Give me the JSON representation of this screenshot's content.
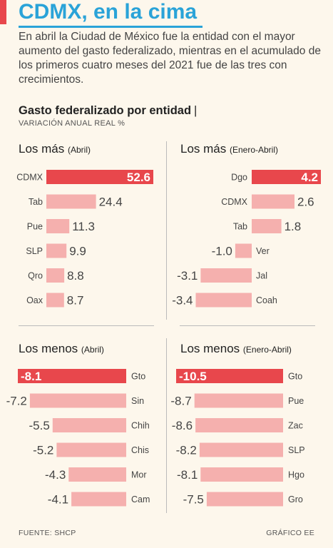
{
  "header": {
    "title": "CDMX, en la cima",
    "subtitle": "En abril la Ciudad de México fue la entidad con el mayor aumento del gasto federalizado, mientras en el acumulado de los primeros cuatro meses del 2021 fue de las tres con crecimientos."
  },
  "chart_header": {
    "title": "Gasto federalizado por entidad",
    "separator": "|",
    "unit_label": "VARIACIÓN ANUAL REAL %"
  },
  "colors": {
    "highlight": "#e8474c",
    "bar": "#f5b0ae",
    "title": "#2aa3d8"
  },
  "chart_data": [
    {
      "type": "bar",
      "title": "Los más",
      "period": "(Abril)",
      "categories": [
        "CDMX",
        "Tab",
        "Pue",
        "SLP",
        "Qro",
        "Oax"
      ],
      "values": [
        52.6,
        24.4,
        11.3,
        9.9,
        8.8,
        8.7
      ],
      "labels": [
        "52.6",
        "24.4",
        "11.3",
        "9.9",
        "8.8",
        "8.7"
      ],
      "highlight_index": 0
    },
    {
      "type": "bar",
      "title": "Los más",
      "period": "(Enero-Abril)",
      "categories": [
        "Dgo",
        "CDMX",
        "Tab",
        "Ver",
        "Jal",
        "Coah"
      ],
      "values": [
        4.2,
        2.6,
        1.8,
        -1.0,
        -3.1,
        -3.4
      ],
      "labels": [
        "4.2",
        "2.6",
        "1.8",
        "-1.0",
        "-3.1",
        "-3.4"
      ],
      "highlight_index": 0
    },
    {
      "type": "bar",
      "title": "Los menos",
      "period": "(Abril)",
      "categories": [
        "Gto",
        "Sin",
        "Chih",
        "Chis",
        "Mor",
        "Cam"
      ],
      "values": [
        -8.1,
        -7.2,
        -5.5,
        -5.2,
        -4.3,
        -4.1
      ],
      "labels": [
        "-8.1",
        "-7.2",
        "-5.5",
        "-5.2",
        "-4.3",
        "-4.1"
      ],
      "highlight_index": 0
    },
    {
      "type": "bar",
      "title": "Los menos",
      "period": "(Enero-Abril)",
      "categories": [
        "Gto",
        "Pue",
        "Zac",
        "SLP",
        "Hgo",
        "Gro"
      ],
      "values": [
        -10.5,
        -8.7,
        -8.6,
        -8.2,
        -8.1,
        -7.5
      ],
      "labels": [
        "-10.5",
        "-8.7",
        "-8.6",
        "-8.2",
        "-8.1",
        "-7.5"
      ],
      "highlight_index": 0
    }
  ],
  "footer": {
    "source": "FUENTE: SHCP",
    "credit": "GRÁFICO EE"
  }
}
